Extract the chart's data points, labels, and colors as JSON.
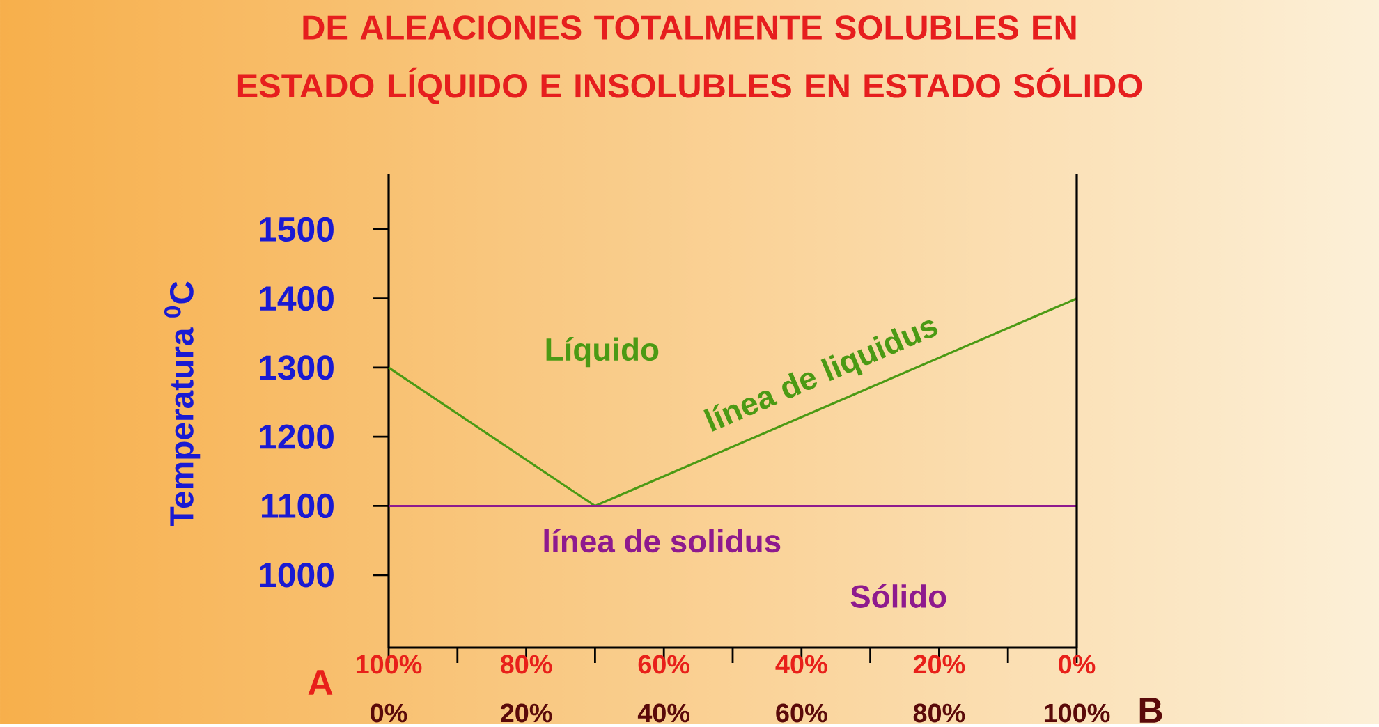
{
  "chart_data": {
    "type": "line",
    "title": "DE ALEACIONES TOTALMENTE SOLUBLES EN ESTADO LÍQUIDO E INSOLUBLES EN ESTADO SÓLIDO",
    "ylabel": "Temperatura $^{0}$C",
    "xlabel": "B",
    "x2label": "A",
    "xlim": [
      0,
      100
    ],
    "ylim": [
      895,
      1580
    ],
    "xticks": [
      {
        "value": 0,
        "label": "0%"
      },
      {
        "value": 20,
        "label": "20%"
      },
      {
        "value": 40,
        "label": "40%"
      },
      {
        "value": 60,
        "label": "60%"
      },
      {
        "value": 80,
        "label": "80%"
      },
      {
        "value": 100,
        "label": "100%"
      }
    ],
    "x2lim": [
      100,
      0
    ],
    "x2ticks": [
      {
        "value": 100,
        "label": "100%"
      },
      {
        "value": 80,
        "label": "80%"
      },
      {
        "value": 60,
        "label": "60%"
      },
      {
        "value": 40,
        "label": "40%"
      },
      {
        "value": 20,
        "label": "20%"
      },
      {
        "value": 0,
        "label": "0%"
      }
    ],
    "yticks": [
      1000,
      1100,
      1200,
      1300,
      1400,
      1500
    ],
    "series": [
      {
        "color": "#4b9a14",
        "x": [
          0,
          30,
          100
        ],
        "values": [
          1300,
          1100,
          1400
        ]
      },
      {
        "color": "#8e1a8e",
        "x": [
          0,
          100
        ],
        "values": [
          1100,
          1100
        ]
      }
    ],
    "annotations": [
      "Líquido",
      "línea de liquidus",
      "línea de solidus",
      "Sólido"
    ]
  }
}
